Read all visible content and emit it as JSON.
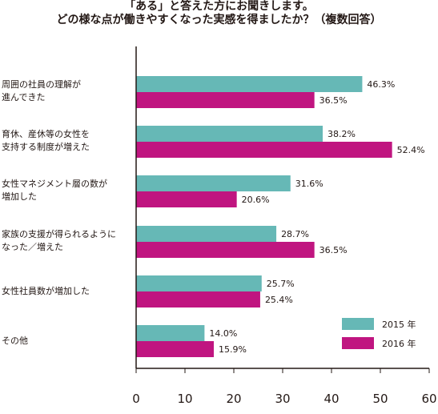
{
  "title_line1": "「ある」と答えた方にお聞きします。",
  "title_line2": "どの様な点が働きやすくなった実感を得ましたか？（複数回答）",
  "chart_data": {
    "type": "bar",
    "orientation": "horizontal",
    "categories": [
      [
        "周囲の社員の理解が",
        "進んできた"
      ],
      [
        "育休、産休等の女性を",
        "支持する制度が増えた"
      ],
      [
        "女性マネジメント層の数が",
        "増加した"
      ],
      [
        "家族の支援が得られるように",
        "なった／増えた"
      ],
      [
        "女性社員数が増加した"
      ],
      [
        "その他"
      ]
    ],
    "series": [
      {
        "name": "2015 年",
        "color": "#66b8b6",
        "values": [
          46.3,
          38.2,
          31.6,
          28.7,
          25.7,
          14.0
        ]
      },
      {
        "name": "2016 年",
        "color": "#c01580",
        "values": [
          36.5,
          52.4,
          20.6,
          36.5,
          25.4,
          15.9
        ]
      }
    ],
    "value_suffix": "%",
    "xlim": [
      0,
      60
    ],
    "xticks": [
      0,
      10,
      20,
      30,
      40,
      50,
      60
    ],
    "legend_position": "bottom-right",
    "grid": false
  }
}
